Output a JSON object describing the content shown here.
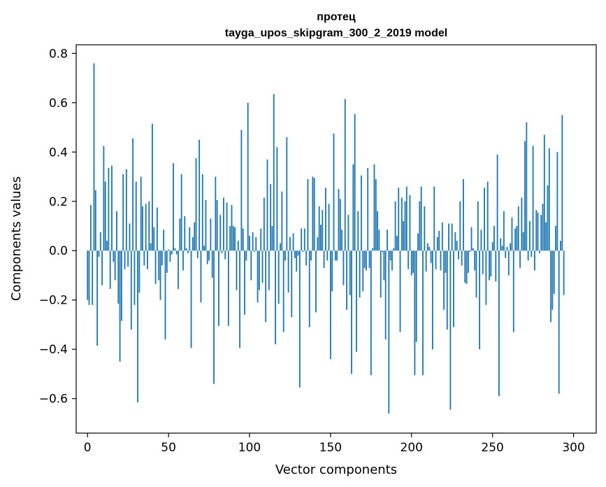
{
  "chart_data": {
    "type": "bar",
    "title_line1": "протец",
    "title_line2": "tayga_upos_skipgram_300_2_2019 model",
    "xlabel": "Vector components",
    "ylabel": "Components values",
    "xlim": [
      -7,
      314
    ],
    "ylim": [
      -0.74,
      0.835
    ],
    "xticks": [
      0,
      50,
      100,
      150,
      200,
      250,
      300
    ],
    "xtick_labels": [
      "0",
      "50",
      "100",
      "150",
      "200",
      "250",
      "300"
    ],
    "yticks": [
      -0.6,
      -0.4,
      -0.2,
      0.0,
      0.2,
      0.4,
      0.6,
      0.8
    ],
    "ytick_labels": [
      "−0.6",
      "−0.4",
      "−0.2",
      "0.0",
      "0.2",
      "0.4",
      "0.6",
      "0.8"
    ],
    "bar_color": "#1f77b4",
    "values": [
      -0.2,
      -0.22,
      0.185,
      -0.22,
      0.76,
      0.245,
      -0.385,
      -0.025,
      0.075,
      -0.14,
      0.425,
      0.28,
      0.04,
      0.335,
      -0.155,
      0.345,
      -0.045,
      -0.12,
      0.16,
      -0.215,
      -0.45,
      -0.285,
      0.31,
      -0.075,
      0.33,
      -0.065,
      0.11,
      -0.32,
      0.455,
      -0.22,
      0.28,
      -0.615,
      -0.17,
      0.3,
      0.18,
      -0.06,
      0.19,
      -0.075,
      0.2,
      0.03,
      0.515,
      0.095,
      -0.135,
      0.175,
      -0.12,
      -0.2,
      -0.06,
      0.085,
      -0.36,
      -0.09,
      0.005,
      -0.045,
      -0.015,
      0.355,
      0.01,
      -0.015,
      -0.155,
      0.13,
      0.31,
      -0.08,
      0.14,
      0.01,
      -0.01,
      0.095,
      -0.395,
      0.055,
      0.115,
      0.375,
      -0.03,
      0.45,
      -0.21,
      0.31,
      0.02,
      0.205,
      -0.055,
      -0.04,
      0.13,
      -0.11,
      -0.54,
      0.3,
      0.205,
      -0.305,
      0.145,
      -0.01,
      0.215,
      -0.035,
      0.195,
      -0.305,
      0.1,
      0.185,
      0.1,
      0.095,
      -0.16,
      0.04,
      -0.395,
      0.49,
      0.09,
      -0.26,
      -0.04,
      0.6,
      0.06,
      -0.12,
      0.075,
      -0.005,
      0.055,
      -0.21,
      -0.16,
      0.09,
      -0.13,
      0.215,
      -0.29,
      0.37,
      -0.16,
      0.27,
      0.1,
      0.635,
      -0.38,
      0.42,
      -0.215,
      0.03,
      0.24,
      -0.33,
      -0.04,
      0.46,
      -0.17,
      0.055,
      -0.27,
      0.07,
      -0.03,
      -0.085,
      -0.02,
      -0.555,
      0.09,
      -0.005,
      0.09,
      -0.06,
      0.29,
      -0.31,
      -0.04,
      0.3,
      0.295,
      -0.25,
      0.055,
      0.18,
      0.105,
      0.165,
      -0.07,
      0.255,
      -0.04,
      0.19,
      -0.44,
      -0.165,
      0.475,
      -0.04,
      -0.04,
      0.25,
      0.21,
      0.085,
      -0.14,
      0.615,
      -0.24,
      0.145,
      -0.18,
      -0.5,
      0.35,
      0.555,
      -0.41,
      0.16,
      -0.19,
      0.305,
      -0.165,
      -0.07,
      -0.08,
      0.335,
      -0.07,
      -0.505,
      0.01,
      0.35,
      0.29,
      0.16,
      0.085,
      -0.19,
      -0.005,
      -0.12,
      -0.36,
      0.085,
      -0.66,
      -0.04,
      -0.08,
      0.01,
      0.2,
      0.06,
      0.255,
      -0.33,
      0.215,
      0.12,
      0.2,
      0.26,
      -0.075,
      0.225,
      -0.1,
      -0.09,
      -0.505,
      -0.37,
      0.07,
      0.2,
      0.26,
      -0.505,
      0.18,
      -0.085,
      0.03,
      0.015,
      -0.05,
      -0.4,
      0.26,
      -0.075,
      0.055,
      0.08,
      -0.08,
      0.115,
      -0.24,
      -0.09,
      -0.32,
      0.11,
      -0.645,
      0.11,
      -0.31,
      0.075,
      0.04,
      -0.035,
      0.2,
      -0.06,
      0.29,
      -0.13,
      -0.135,
      -0.09,
      -0.005,
      0.095,
      0.01,
      -0.08,
      -0.19,
      0.2,
      -0.4,
      0.085,
      -0.095,
      0.255,
      -0.22,
      0.28,
      -0.12,
      -0.105,
      0.035,
      0.1,
      -0.125,
      0.39,
      -0.59,
      0.05,
      0.02,
      0.16,
      -0.03,
      0.015,
      -0.1,
      0.03,
      0.135,
      -0.33,
      0.09,
      0.1,
      0.18,
      -0.07,
      0.215,
      0.075,
      0.445,
      0.52,
      -0.04,
      0.12,
      -0.025,
      0.425,
      -0.08,
      0.165,
      0.155,
      -0.01,
      0.145,
      0.19,
      0.47,
      0.115,
      0.265,
      0.415,
      -0.29,
      -0.24,
      -0.175,
      0.1,
      0.4,
      -0.58,
      0.04,
      0.55,
      -0.18
    ]
  }
}
